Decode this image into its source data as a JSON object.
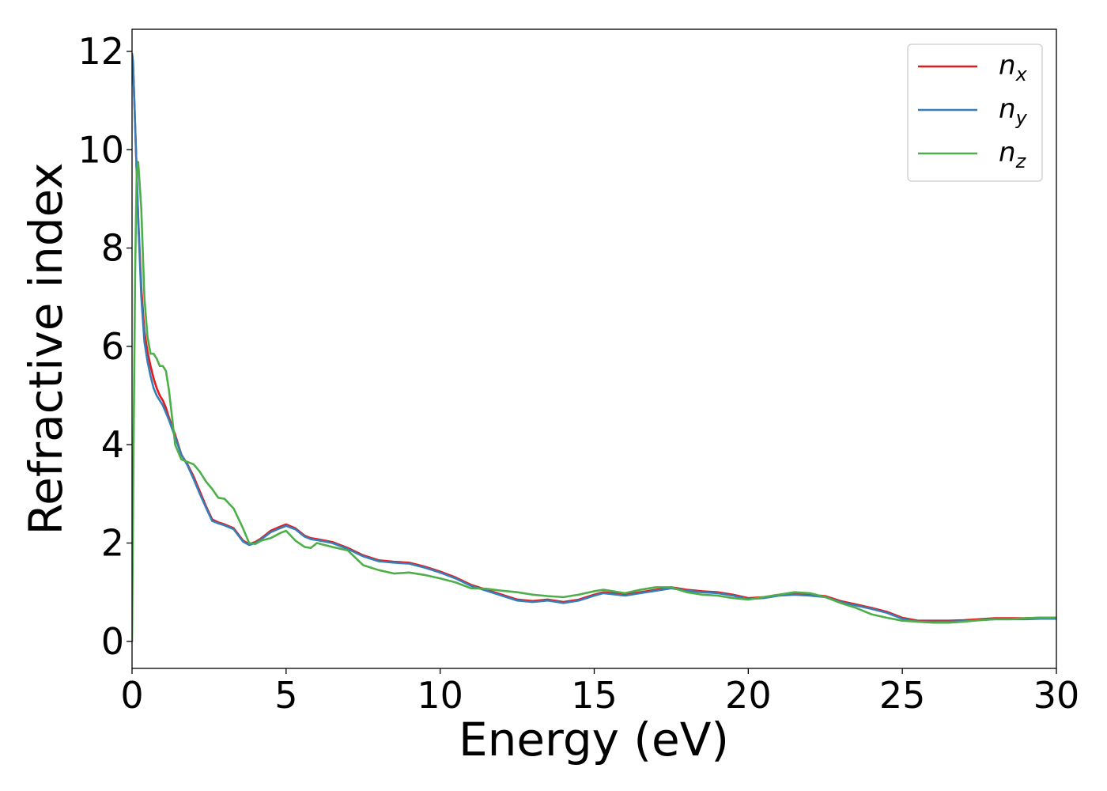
{
  "chart_data": {
    "type": "line",
    "title": "",
    "xlabel": "Energy (eV)",
    "ylabel": "Refractive index",
    "xlim": [
      0,
      30
    ],
    "ylim": [
      -0.55,
      12.45
    ],
    "xticks": [
      0,
      5,
      10,
      15,
      20,
      25,
      30
    ],
    "yticks": [
      0,
      2,
      4,
      6,
      8,
      10,
      12
    ],
    "grid": false,
    "legend_position": "top-right",
    "series": [
      {
        "name": "n_x",
        "label_base": "n",
        "label_sub": "x",
        "color": "#e41a1c",
        "x": [
          0,
          0.03,
          0.1,
          0.2,
          0.3,
          0.4,
          0.5,
          0.6,
          0.7,
          0.8,
          0.9,
          1.0,
          1.1,
          1.2,
          1.4,
          1.6,
          1.8,
          2.0,
          2.2,
          2.4,
          2.6,
          2.8,
          3.0,
          3.3,
          3.6,
          3.8,
          4.0,
          4.2,
          4.5,
          4.8,
          5.0,
          5.3,
          5.6,
          5.8,
          6.0,
          6.5,
          7.0,
          7.5,
          8.0,
          8.5,
          9.0,
          9.5,
          10.0,
          10.5,
          11.0,
          11.5,
          12.0,
          12.5,
          13.0,
          13.5,
          14.0,
          14.5,
          15.0,
          15.3,
          15.6,
          16.0,
          16.5,
          17.0,
          17.5,
          18.0,
          18.5,
          19.0,
          19.5,
          20.0,
          20.5,
          21.0,
          21.5,
          22.0,
          22.5,
          23.0,
          23.5,
          24.0,
          24.5,
          25.0,
          25.5,
          26.0,
          26.5,
          27.0,
          27.5,
          28.0,
          28.5,
          29.0,
          29.5,
          30.0
        ],
        "y": [
          11.95,
          11.8,
          10.5,
          8.6,
          7.2,
          6.3,
          5.9,
          5.6,
          5.35,
          5.15,
          5.0,
          4.9,
          4.75,
          4.55,
          4.2,
          3.8,
          3.6,
          3.35,
          3.05,
          2.75,
          2.48,
          2.42,
          2.38,
          2.3,
          2.05,
          1.98,
          2.02,
          2.1,
          2.25,
          2.33,
          2.38,
          2.3,
          2.15,
          2.1,
          2.08,
          2.02,
          1.9,
          1.75,
          1.65,
          1.62,
          1.6,
          1.52,
          1.42,
          1.3,
          1.15,
          1.05,
          0.95,
          0.85,
          0.82,
          0.85,
          0.8,
          0.85,
          0.95,
          1.0,
          0.98,
          0.95,
          1.0,
          1.05,
          1.1,
          1.05,
          1.02,
          1.0,
          0.95,
          0.88,
          0.9,
          0.95,
          0.97,
          0.95,
          0.92,
          0.82,
          0.75,
          0.68,
          0.6,
          0.48,
          0.42,
          0.42,
          0.42,
          0.43,
          0.45,
          0.47,
          0.47,
          0.47,
          0.48,
          0.48
        ]
      },
      {
        "name": "n_y",
        "label_base": "n",
        "label_sub": "y",
        "color": "#377eb8",
        "x": [
          0,
          0.03,
          0.1,
          0.2,
          0.3,
          0.4,
          0.5,
          0.6,
          0.7,
          0.8,
          0.9,
          1.0,
          1.1,
          1.2,
          1.4,
          1.6,
          1.8,
          2.0,
          2.2,
          2.4,
          2.6,
          2.8,
          3.0,
          3.3,
          3.6,
          3.8,
          4.0,
          4.2,
          4.5,
          4.8,
          5.0,
          5.3,
          5.6,
          5.8,
          6.0,
          6.5,
          7.0,
          7.5,
          8.0,
          8.5,
          9.0,
          9.5,
          10.0,
          10.5,
          11.0,
          11.5,
          12.0,
          12.5,
          13.0,
          13.5,
          14.0,
          14.5,
          15.0,
          15.3,
          15.6,
          16.0,
          16.5,
          17.0,
          17.5,
          18.0,
          18.5,
          19.0,
          19.5,
          20.0,
          20.5,
          21.0,
          21.5,
          22.0,
          22.5,
          23.0,
          23.5,
          24.0,
          24.5,
          25.0,
          25.5,
          26.0,
          26.5,
          27.0,
          27.5,
          28.0,
          28.5,
          29.0,
          29.5,
          30.0
        ],
        "y": [
          11.95,
          11.8,
          10.5,
          8.6,
          7.0,
          6.1,
          5.7,
          5.4,
          5.15,
          5.0,
          4.9,
          4.8,
          4.65,
          4.5,
          4.15,
          3.8,
          3.58,
          3.3,
          3.0,
          2.72,
          2.45,
          2.4,
          2.36,
          2.28,
          2.03,
          1.96,
          2.0,
          2.08,
          2.22,
          2.3,
          2.35,
          2.28,
          2.13,
          2.08,
          2.06,
          2.0,
          1.88,
          1.73,
          1.63,
          1.6,
          1.58,
          1.5,
          1.4,
          1.28,
          1.13,
          1.03,
          0.93,
          0.83,
          0.8,
          0.83,
          0.78,
          0.83,
          0.93,
          0.98,
          0.96,
          0.93,
          0.98,
          1.03,
          1.08,
          1.03,
          1.0,
          0.98,
          0.93,
          0.86,
          0.88,
          0.93,
          0.95,
          0.93,
          0.9,
          0.8,
          0.73,
          0.66,
          0.58,
          0.46,
          0.4,
          0.4,
          0.4,
          0.41,
          0.43,
          0.45,
          0.45,
          0.45,
          0.46,
          0.46
        ]
      },
      {
        "name": "n_z",
        "label_base": "n",
        "label_sub": "z",
        "color": "#4daf4a",
        "x": [
          0,
          0.05,
          0.1,
          0.15,
          0.2,
          0.3,
          0.4,
          0.5,
          0.6,
          0.7,
          0.8,
          0.9,
          1.0,
          1.1,
          1.2,
          1.4,
          1.6,
          1.8,
          2.0,
          2.2,
          2.4,
          2.6,
          2.8,
          3.0,
          3.3,
          3.6,
          3.8,
          4.0,
          4.2,
          4.5,
          4.8,
          5.0,
          5.3,
          5.6,
          5.8,
          6.0,
          6.5,
          7.0,
          7.5,
          8.0,
          8.5,
          9.0,
          9.5,
          10.0,
          10.5,
          11.0,
          11.5,
          12.0,
          12.5,
          13.0,
          13.5,
          14.0,
          14.5,
          15.0,
          15.3,
          15.6,
          16.0,
          16.5,
          17.0,
          17.5,
          18.0,
          18.5,
          19.0,
          19.5,
          20.0,
          20.5,
          21.0,
          21.5,
          22.0,
          22.5,
          23.0,
          23.5,
          24.0,
          24.5,
          25.0,
          25.5,
          26.0,
          26.5,
          27.0,
          27.5,
          28.0,
          28.5,
          29.0,
          29.5,
          30.0
        ],
        "y": [
          0.0,
          4.0,
          7.5,
          9.5,
          9.75,
          8.8,
          7.0,
          6.2,
          5.85,
          5.85,
          5.75,
          5.6,
          5.6,
          5.5,
          5.1,
          4.0,
          3.7,
          3.65,
          3.6,
          3.45,
          3.25,
          3.1,
          2.92,
          2.9,
          2.7,
          2.3,
          2.0,
          1.98,
          2.05,
          2.1,
          2.2,
          2.25,
          2.05,
          1.92,
          1.9,
          2.0,
          1.92,
          1.85,
          1.55,
          1.45,
          1.38,
          1.4,
          1.35,
          1.28,
          1.2,
          1.08,
          1.07,
          1.03,
          1.0,
          0.95,
          0.92,
          0.9,
          0.95,
          1.02,
          1.05,
          1.02,
          0.98,
          1.05,
          1.1,
          1.1,
          1.0,
          0.95,
          0.93,
          0.88,
          0.85,
          0.9,
          0.95,
          1.0,
          0.98,
          0.9,
          0.78,
          0.68,
          0.55,
          0.48,
          0.42,
          0.4,
          0.38,
          0.38,
          0.4,
          0.43,
          0.45,
          0.45,
          0.47,
          0.48,
          0.48
        ]
      }
    ]
  }
}
